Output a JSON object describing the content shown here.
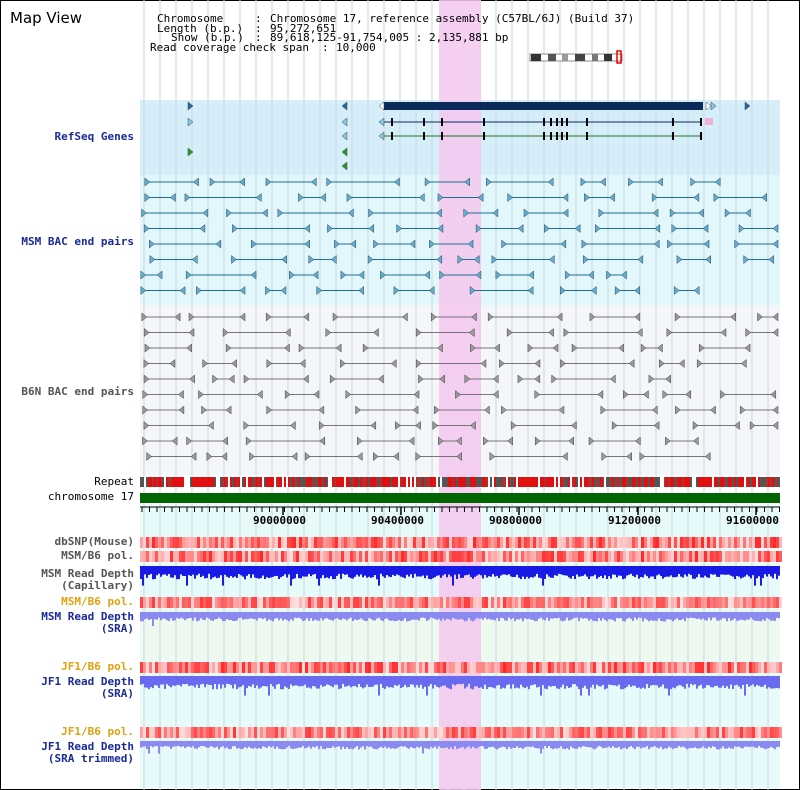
{
  "window": {
    "title": "Map View"
  },
  "info": {
    "chromosome_label": "Chromosome",
    "chromosome_value": "Chromosome 17, reference assembly (C57BL/6J) (Build 37)",
    "length_label": "Length (b.p.)",
    "length_value": "95,272,651",
    "show_label": "Show (b.p.)",
    "show_value": "89,618,125-91,754,005 : 2,135,881 bp",
    "coverage_label": "Read coverage check span",
    "coverage_value": "10,000"
  },
  "tracks": {
    "refseq": "RefSeq Genes",
    "msm_bac": "MSM BAC end pairs",
    "b6n_bac": "B6N BAC end pairs",
    "repeat": "Repeat",
    "chromosome": "chromosome 17",
    "dbsnp": "dbSNP(Mouse)",
    "msm_b6_pol": "MSM/B6 pol.",
    "msm_depth_cap_1": "MSM Read Depth",
    "msm_depth_cap_2": "(Capillary)",
    "msm_b6_pol2": "MSM/B6 pol.",
    "msm_depth_sra_1": "MSM Read Depth",
    "msm_depth_sra_2": "(SRA)",
    "jf1_b6_pol": "JF1/B6 pol.",
    "jf1_depth_sra_1": "JF1 Read Depth",
    "jf1_depth_sra_2": "(SRA)",
    "jf1_b6_pol2": "JF1/B6 pol.",
    "jf1_depth_trim_1": "JF1 Read Depth",
    "jf1_depth_trim_2": "(SRA trimmed)"
  },
  "axis": {
    "ticks": [
      "90000000",
      "90400000",
      "90800000",
      "91200000",
      "91600000"
    ]
  },
  "colors": {
    "refseq_bg": "#d6eefa",
    "bac_bg": "#e2f7fb",
    "b6n_bg": "#f0f4f8",
    "highlight": "#f5c8ef",
    "gene": "#0a2a5a",
    "chrom_bar": "#006400",
    "depth_blue": "#1010e0",
    "depth_light": "#8080f0"
  }
}
